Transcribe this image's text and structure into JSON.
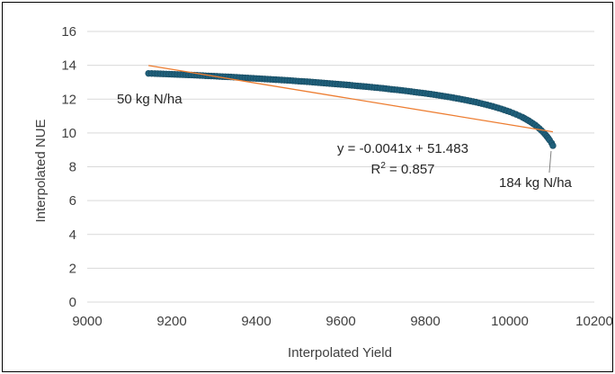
{
  "chart_data": {
    "type": "scatter",
    "xlabel": "Interpolated Yield",
    "ylabel": "Interpolated NUE",
    "xlim": [
      9000,
      10200
    ],
    "ylim": [
      0,
      16
    ],
    "x_ticks": [
      9000,
      9200,
      9400,
      9600,
      9800,
      10000,
      10200
    ],
    "y_ticks": [
      0,
      2,
      4,
      6,
      8,
      10,
      12,
      14,
      16
    ],
    "grid": "horizontal",
    "legend": "none",
    "series": [
      {
        "marker_color": "#1f5f7a",
        "points": [
          [
            9145,
            13.52
          ],
          [
            9160,
            13.51
          ],
          [
            9180,
            13.49
          ],
          [
            9200,
            13.47
          ],
          [
            9220,
            13.45
          ],
          [
            9240,
            13.43
          ],
          [
            9260,
            13.41
          ],
          [
            9280,
            13.38
          ],
          [
            9300,
            13.36
          ],
          [
            9320,
            13.33
          ],
          [
            9340,
            13.31
          ],
          [
            9360,
            13.28
          ],
          [
            9380,
            13.25
          ],
          [
            9400,
            13.22
          ],
          [
            9420,
            13.19
          ],
          [
            9440,
            13.16
          ],
          [
            9460,
            13.13
          ],
          [
            9480,
            13.1
          ],
          [
            9500,
            13.06
          ],
          [
            9520,
            13.03
          ],
          [
            9540,
            12.99
          ],
          [
            9560,
            12.95
          ],
          [
            9580,
            12.91
          ],
          [
            9600,
            12.87
          ],
          [
            9620,
            12.83
          ],
          [
            9640,
            12.78
          ],
          [
            9660,
            12.74
          ],
          [
            9680,
            12.69
          ],
          [
            9700,
            12.64
          ],
          [
            9720,
            12.58
          ],
          [
            9740,
            12.53
          ],
          [
            9760,
            12.47
          ],
          [
            9780,
            12.4
          ],
          [
            9800,
            12.34
          ],
          [
            9820,
            12.27
          ],
          [
            9840,
            12.19
          ],
          [
            9860,
            12.11
          ],
          [
            9880,
            12.02
          ],
          [
            9900,
            11.92
          ],
          [
            9920,
            11.82
          ],
          [
            9940,
            11.7
          ],
          [
            9960,
            11.57
          ],
          [
            9980,
            11.42
          ],
          [
            10000,
            11.25
          ],
          [
            10015,
            11.1
          ],
          [
            10030,
            10.93
          ],
          [
            10045,
            10.72
          ],
          [
            10060,
            10.47
          ],
          [
            10070,
            10.26
          ],
          [
            10080,
            10.02
          ],
          [
            10088,
            9.79
          ],
          [
            10094,
            9.58
          ],
          [
            10099,
            9.4
          ],
          [
            10102,
            9.25
          ]
        ]
      }
    ],
    "trendline": {
      "type": "linear",
      "slope": -0.0041,
      "intercept": 51.483,
      "x_range": [
        9145,
        10102
      ],
      "color": "#ed7d31",
      "equation_text": "y = -0.0041x + 51.483",
      "r2_text_prefix": "R",
      "r2_text_sup": "2",
      "r2_text_value": " = 0.857"
    },
    "annotations": [
      {
        "text": "50 kg N/ha",
        "x": 9145,
        "y": 13.52,
        "side": "below-left"
      },
      {
        "text": "184 kg N/ha",
        "x": 10102,
        "y": 9.25,
        "side": "below"
      }
    ]
  },
  "colors": {
    "grid": "#d9d9d9",
    "marker": "#1f5f7a",
    "trendline": "#ed7d31",
    "text": "#404040"
  }
}
